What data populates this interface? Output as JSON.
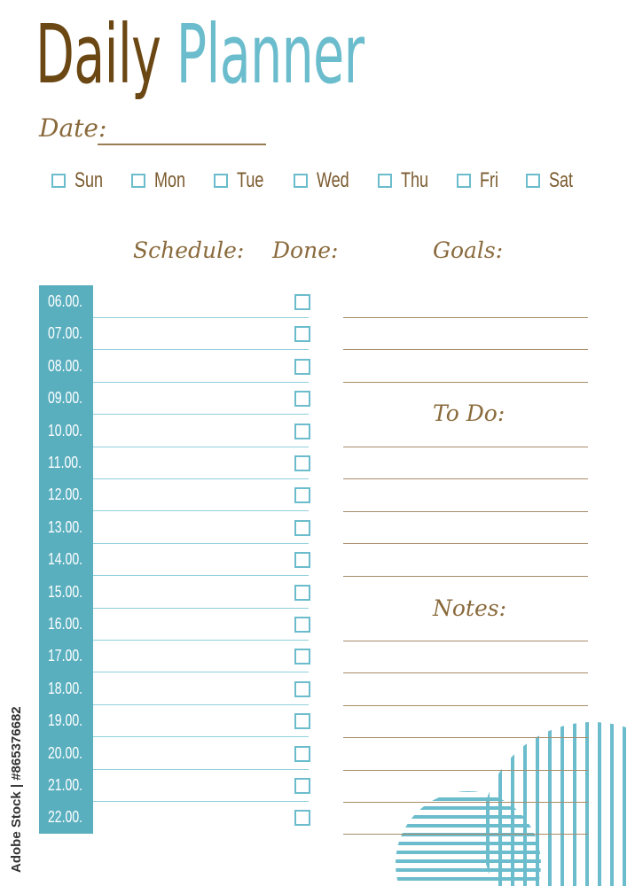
{
  "title": {
    "word1": "Daily",
    "word2": "Planner"
  },
  "date_label": "Date:",
  "days": [
    "Sun",
    "Mon",
    "Tue",
    "Wed",
    "Thu",
    "Fri",
    "Sat"
  ],
  "headers": {
    "schedule": "Schedule:",
    "done": "Done:",
    "goals": "Goals:",
    "todo": "To Do:",
    "notes": "Notes:"
  },
  "times": [
    "06.00.",
    "07.00.",
    "08.00.",
    "09.00.",
    "10.00.",
    "11.00.",
    "12.00.",
    "13.00.",
    "14.00.",
    "15.00.",
    "16.00.",
    "17.00.",
    "18.00.",
    "19.00.",
    "20.00.",
    "21.00.",
    "22.00."
  ],
  "watermark": "Adobe Stock | #865376682",
  "colors": {
    "brown": "#6b4714",
    "teal": "#6bbccc",
    "line": "#a88c6a"
  }
}
